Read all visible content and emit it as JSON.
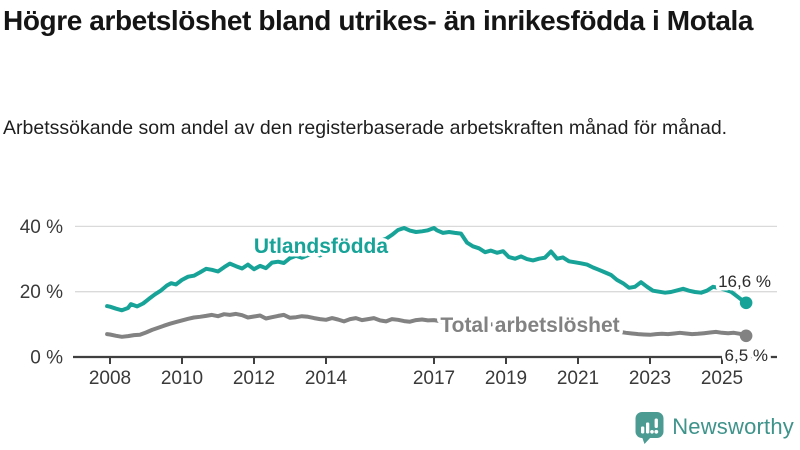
{
  "header": {
    "title": "Högre arbetslöshet bland utrikes- än inrikesfödda i Motala",
    "subtitle": "Arbetssökande som andel av den registerbaserade arbetskraften månad för månad."
  },
  "chart_data": {
    "type": "line",
    "title": "Högre arbetslöshet bland utrikes- än inrikesfödda i Motala",
    "subtitle": "Arbetssökande som andel av den registerbaserade arbetskraften månad för månad.",
    "grid": "horizontal-only",
    "legend_position": "labels-on-lines",
    "x_axis": {
      "ticks": [
        2008,
        2010,
        2012,
        2014,
        2017,
        2019,
        2021,
        2023,
        2025
      ],
      "tick_labels": [
        "2008",
        "2010",
        "2012",
        "2014",
        "2017",
        "2019",
        "2021",
        "2023",
        "2025"
      ],
      "range": [
        2007.9,
        2026.6
      ]
    },
    "y_axis": {
      "ticks": [
        0,
        20,
        40
      ],
      "tick_labels": [
        "0 %",
        "20 %",
        "40 %"
      ],
      "range": [
        0,
        42
      ]
    },
    "series": [
      {
        "name": "Total arbetslöshet",
        "color": "#828282",
        "end_value": 6.5,
        "end_label": "6,5 %",
        "points": [
          [
            2007.92,
            7.0
          ],
          [
            2008.0,
            6.9
          ],
          [
            2008.17,
            6.5
          ],
          [
            2008.33,
            6.2
          ],
          [
            2008.5,
            6.4
          ],
          [
            2008.67,
            6.7
          ],
          [
            2008.83,
            6.8
          ],
          [
            2009.0,
            7.5
          ],
          [
            2009.17,
            8.3
          ],
          [
            2009.33,
            8.9
          ],
          [
            2009.5,
            9.6
          ],
          [
            2009.67,
            10.2
          ],
          [
            2009.83,
            10.7
          ],
          [
            2010.0,
            11.2
          ],
          [
            2010.17,
            11.7
          ],
          [
            2010.33,
            12.1
          ],
          [
            2010.5,
            12.3
          ],
          [
            2010.67,
            12.6
          ],
          [
            2010.83,
            12.9
          ],
          [
            2011.0,
            12.5
          ],
          [
            2011.17,
            13.1
          ],
          [
            2011.33,
            12.9
          ],
          [
            2011.5,
            13.2
          ],
          [
            2011.67,
            12.8
          ],
          [
            2011.83,
            12.1
          ],
          [
            2012.0,
            12.4
          ],
          [
            2012.17,
            12.7
          ],
          [
            2012.33,
            11.8
          ],
          [
            2012.5,
            12.2
          ],
          [
            2012.67,
            12.6
          ],
          [
            2012.83,
            12.9
          ],
          [
            2013.0,
            12.0
          ],
          [
            2013.17,
            12.2
          ],
          [
            2013.33,
            12.5
          ],
          [
            2013.5,
            12.3
          ],
          [
            2013.67,
            11.9
          ],
          [
            2013.83,
            11.6
          ],
          [
            2014.0,
            11.4
          ],
          [
            2014.17,
            11.9
          ],
          [
            2014.33,
            11.5
          ],
          [
            2014.5,
            10.9
          ],
          [
            2014.67,
            11.6
          ],
          [
            2014.83,
            11.9
          ],
          [
            2015.0,
            11.3
          ],
          [
            2015.17,
            11.6
          ],
          [
            2015.33,
            11.9
          ],
          [
            2015.5,
            11.2
          ],
          [
            2015.67,
            10.9
          ],
          [
            2015.83,
            11.6
          ],
          [
            2016.0,
            11.4
          ],
          [
            2016.17,
            11.0
          ],
          [
            2016.33,
            10.8
          ],
          [
            2016.5,
            11.3
          ],
          [
            2016.67,
            11.5
          ],
          [
            2016.83,
            11.2
          ],
          [
            2017.0,
            11.3
          ],
          [
            2017.17,
            11.0
          ],
          [
            2017.33,
            10.8
          ],
          [
            2017.5,
            11.1
          ],
          [
            2017.67,
            10.9
          ],
          [
            2017.83,
            10.7
          ],
          [
            2018.0,
            10.4
          ],
          [
            2018.17,
            10.2
          ],
          [
            2018.33,
            10.4
          ],
          [
            2018.5,
            10.1
          ],
          [
            2018.67,
            9.9
          ],
          [
            2018.83,
            9.7
          ],
          [
            2019.0,
            9.6
          ],
          [
            2019.17,
            9.4
          ],
          [
            2019.33,
            9.3
          ],
          [
            2019.5,
            9.2
          ],
          [
            2019.67,
            9.1
          ],
          [
            2019.83,
            9.3
          ],
          [
            2020.0,
            9.6
          ],
          [
            2020.17,
            10.4
          ],
          [
            2020.33,
            10.9
          ],
          [
            2020.5,
            10.7
          ],
          [
            2020.67,
            10.4
          ],
          [
            2020.83,
            10.2
          ],
          [
            2021.0,
            9.9
          ],
          [
            2021.17,
            9.7
          ],
          [
            2021.33,
            9.4
          ],
          [
            2021.5,
            9.1
          ],
          [
            2021.67,
            8.8
          ],
          [
            2021.83,
            8.5
          ],
          [
            2022.0,
            8.1
          ],
          [
            2022.17,
            7.7
          ],
          [
            2022.33,
            7.4
          ],
          [
            2022.5,
            7.2
          ],
          [
            2022.67,
            7.0
          ],
          [
            2022.83,
            6.9
          ],
          [
            2023.0,
            6.8
          ],
          [
            2023.17,
            7.0
          ],
          [
            2023.33,
            7.1
          ],
          [
            2023.5,
            7.0
          ],
          [
            2023.67,
            7.2
          ],
          [
            2023.83,
            7.4
          ],
          [
            2024.0,
            7.2
          ],
          [
            2024.17,
            7.0
          ],
          [
            2024.33,
            7.1
          ],
          [
            2024.5,
            7.3
          ],
          [
            2024.67,
            7.5
          ],
          [
            2024.83,
            7.7
          ],
          [
            2025.0,
            7.4
          ],
          [
            2025.17,
            7.3
          ],
          [
            2025.33,
            7.4
          ],
          [
            2025.5,
            7.1
          ],
          [
            2025.67,
            6.5
          ]
        ]
      },
      {
        "name": "Utlandsfödda",
        "color": "#17A398",
        "end_value": 16.6,
        "end_label": "16,6 %",
        "points": [
          [
            2007.92,
            15.6
          ],
          [
            2008.0,
            15.4
          ],
          [
            2008.17,
            14.8
          ],
          [
            2008.33,
            14.3
          ],
          [
            2008.5,
            15.0
          ],
          [
            2008.58,
            16.2
          ],
          [
            2008.75,
            15.5
          ],
          [
            2008.92,
            16.4
          ],
          [
            2009.08,
            17.8
          ],
          [
            2009.25,
            19.2
          ],
          [
            2009.42,
            20.4
          ],
          [
            2009.58,
            21.9
          ],
          [
            2009.7,
            22.6
          ],
          [
            2009.83,
            22.2
          ],
          [
            2010.0,
            23.6
          ],
          [
            2010.17,
            24.6
          ],
          [
            2010.33,
            24.9
          ],
          [
            2010.5,
            25.9
          ],
          [
            2010.67,
            27.0
          ],
          [
            2010.83,
            26.7
          ],
          [
            2011.0,
            26.2
          ],
          [
            2011.17,
            27.5
          ],
          [
            2011.33,
            28.6
          ],
          [
            2011.5,
            27.8
          ],
          [
            2011.67,
            27.1
          ],
          [
            2011.83,
            28.3
          ],
          [
            2012.0,
            26.9
          ],
          [
            2012.17,
            27.9
          ],
          [
            2012.33,
            27.2
          ],
          [
            2012.5,
            28.9
          ],
          [
            2012.67,
            29.2
          ],
          [
            2012.83,
            28.8
          ],
          [
            2013.0,
            30.3
          ],
          [
            2013.17,
            31.0
          ],
          [
            2013.33,
            30.4
          ],
          [
            2013.5,
            31.2
          ],
          [
            2013.67,
            31.9
          ],
          [
            2013.83,
            31.1
          ],
          [
            2014.0,
            32.3
          ],
          [
            2014.17,
            32.9
          ],
          [
            2014.33,
            32.2
          ],
          [
            2014.5,
            33.0
          ],
          [
            2014.67,
            33.7
          ],
          [
            2014.83,
            33.2
          ],
          [
            2015.0,
            34.4
          ],
          [
            2015.17,
            33.9
          ],
          [
            2015.33,
            35.1
          ],
          [
            2015.5,
            35.6
          ],
          [
            2015.67,
            36.2
          ],
          [
            2015.83,
            37.4
          ],
          [
            2016.0,
            38.9
          ],
          [
            2016.17,
            39.5
          ],
          [
            2016.33,
            38.7
          ],
          [
            2016.5,
            38.3
          ],
          [
            2016.67,
            38.5
          ],
          [
            2016.83,
            38.8
          ],
          [
            2017.0,
            39.5
          ],
          [
            2017.08,
            38.8
          ],
          [
            2017.25,
            38.0
          ],
          [
            2017.42,
            38.3
          ],
          [
            2017.58,
            38.0
          ],
          [
            2017.75,
            37.8
          ],
          [
            2017.92,
            35.0
          ],
          [
            2018.08,
            33.9
          ],
          [
            2018.25,
            33.3
          ],
          [
            2018.42,
            32.1
          ],
          [
            2018.58,
            32.6
          ],
          [
            2018.75,
            31.9
          ],
          [
            2018.92,
            32.4
          ],
          [
            2019.08,
            30.6
          ],
          [
            2019.25,
            30.1
          ],
          [
            2019.42,
            30.8
          ],
          [
            2019.58,
            30.0
          ],
          [
            2019.75,
            29.6
          ],
          [
            2019.92,
            30.1
          ],
          [
            2020.08,
            30.4
          ],
          [
            2020.25,
            32.3
          ],
          [
            2020.42,
            30.1
          ],
          [
            2020.58,
            30.5
          ],
          [
            2020.75,
            29.3
          ],
          [
            2020.92,
            29.0
          ],
          [
            2021.08,
            28.7
          ],
          [
            2021.25,
            28.3
          ],
          [
            2021.42,
            27.4
          ],
          [
            2021.58,
            26.7
          ],
          [
            2021.75,
            25.9
          ],
          [
            2021.92,
            25.1
          ],
          [
            2022.08,
            23.6
          ],
          [
            2022.25,
            22.6
          ],
          [
            2022.42,
            21.2
          ],
          [
            2022.58,
            21.5
          ],
          [
            2022.75,
            22.9
          ],
          [
            2022.92,
            21.5
          ],
          [
            2023.08,
            20.3
          ],
          [
            2023.25,
            20.0
          ],
          [
            2023.42,
            19.7
          ],
          [
            2023.58,
            19.9
          ],
          [
            2023.75,
            20.4
          ],
          [
            2023.92,
            20.9
          ],
          [
            2024.08,
            20.3
          ],
          [
            2024.25,
            19.9
          ],
          [
            2024.42,
            19.7
          ],
          [
            2024.58,
            20.3
          ],
          [
            2024.75,
            21.5
          ],
          [
            2024.92,
            21.1
          ],
          [
            2025.08,
            20.6
          ],
          [
            2025.25,
            20.0
          ],
          [
            2025.42,
            18.6
          ],
          [
            2025.58,
            17.2
          ],
          [
            2025.67,
            16.6
          ]
        ]
      }
    ]
  },
  "footer": {
    "brand": "Newsworthy",
    "brand_color": "#3E938B",
    "logo_icon": "newsworthy-bar-chart-speech-bubble-icon"
  },
  "colors": {
    "background": "#ffffff",
    "title_text": "#151515",
    "axis_line": "#3f3f3f",
    "axis_label": "#3a3a3a",
    "gridline": "#dadada",
    "series_foreign_born": "#17A398",
    "series_total": "#828282"
  }
}
